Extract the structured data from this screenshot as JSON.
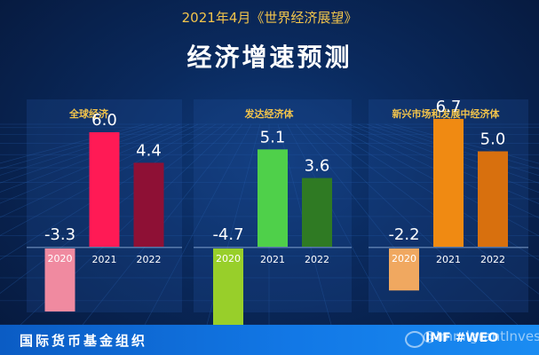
{
  "supertitle": "2021年4月《世界经济展望》",
  "title": "经济增速预测",
  "footer": {
    "org": "国际货币基金组织",
    "tag": "IMF #WEO",
    "watermark": "@ImmigrantInvest"
  },
  "colors": {
    "background": "#0a2a5e",
    "title_gold": "#f3c44b",
    "footer_blue": "#1278e6"
  },
  "chart_data": [
    {
      "type": "bar",
      "title": "全球经济",
      "categories": [
        "2020",
        "2021",
        "2022"
      ],
      "values": [
        -3.3,
        6.0,
        4.4
      ],
      "labels": [
        "-3.3",
        "6.0",
        "4.4"
      ],
      "colors": [
        "#f08aa0",
        "#ff1a55",
        "#8e1035"
      ]
    },
    {
      "type": "bar",
      "title": "发达经济体",
      "categories": [
        "2020",
        "2021",
        "2022"
      ],
      "values": [
        -4.7,
        5.1,
        3.6
      ],
      "labels": [
        "-4.7",
        "5.1",
        "3.6"
      ],
      "colors": [
        "#98cf2a",
        "#4fd04a",
        "#2f7a23"
      ]
    },
    {
      "type": "bar",
      "title": "新兴市场和发展中经济体",
      "categories": [
        "2020",
        "2021",
        "2022"
      ],
      "values": [
        -2.2,
        6.7,
        5.0
      ],
      "labels": [
        "-2.2",
        "6.7",
        "5.0"
      ],
      "colors": [
        "#f0a860",
        "#f08a12",
        "#d8700e"
      ]
    }
  ]
}
